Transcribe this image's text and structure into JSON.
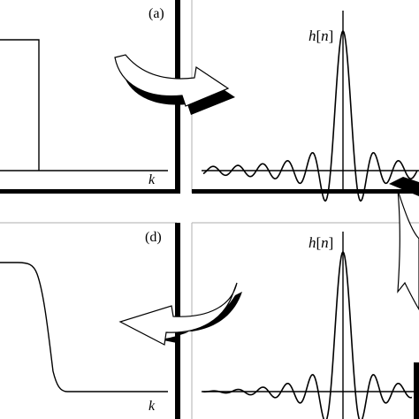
{
  "panels": {
    "top_left": {
      "label": "(a)",
      "axis_label": "k"
    },
    "top_right": {
      "label": "h[n]",
      "label_base": "h",
      "label_open": "[",
      "label_var": "n",
      "label_close": "]"
    },
    "bottom_left": {
      "label": "(d)",
      "axis_label": "k"
    },
    "bottom_right": {
      "label": "h[n]",
      "label_base": "h",
      "label_open": "[",
      "label_var": "n",
      "label_close": "]"
    }
  },
  "colors": {
    "line": "#000000",
    "panel_border": "#bdbdbd",
    "arrow_fill": "#ffffff"
  }
}
